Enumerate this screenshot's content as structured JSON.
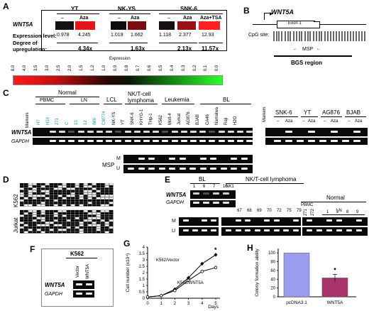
{
  "panels": {
    "A": "A",
    "B": "B",
    "C": "C",
    "D": "D",
    "E": "E",
    "F": "F",
    "G": "G",
    "H": "H"
  },
  "panelA": {
    "gene": "WNT5A",
    "groups": [
      "YT",
      "NK-YS",
      "SNK-6"
    ],
    "treat_minus": "–",
    "treat_aza": "Aza",
    "treat_azatsa": "Aza+TSA",
    "expr_label": "Expression level:",
    "expr_values": [
      "0.978",
      "4.245",
      "1.019",
      "1.662",
      "1.118",
      "2.377",
      "12.93"
    ],
    "degree_label_1": "Degree of",
    "degree_label_2": "upregulation:",
    "degrees": [
      "4.34x",
      "1.63x",
      "2.13x",
      "11.57x"
    ],
    "scale_title": "Expression",
    "scale_ticks": [
      "8.0",
      "4.0",
      "3.5",
      "3.0",
      "2.5",
      "2.0",
      "1.5",
      "1.2",
      "1.0",
      "0.9",
      "0.8",
      "0.7",
      "0.6",
      "0.5",
      "0.4",
      "0.3",
      "0.2",
      "0.1",
      "0.0"
    ],
    "colors": {
      "high": "#d41c1c",
      "low": "#2ad42a",
      "mid": "#111111"
    }
  },
  "panelB": {
    "gene": "WNT5A",
    "exon": "Exon 1",
    "cpg_label": "CpG site:",
    "msp": "MSP",
    "bgs": "BGS region"
  },
  "panelC": {
    "normal": "Normal",
    "pbmc": "PBMC",
    "ln": "LN",
    "lcl": "LCL",
    "nkt": "NK/T-cell",
    "lymphoma": "lymphoma",
    "leukemia": "Leukemia",
    "bl": "BL",
    "markers": "Markers",
    "lanes_normal": [
      "H7",
      "H10",
      "271",
      "C",
      "10",
      "12"
    ],
    "lanes_lcl": [
      "IM9",
      "CM774"
    ],
    "lanes_nkt": [
      "NK-YS",
      "YT",
      "SNK-6",
      "KHYG-1"
    ],
    "lanes_leuk": [
      "THp-1",
      "K562",
      "Molt-4",
      "Jurkat"
    ],
    "lanes_bl": [
      "AG876",
      "BJAB",
      "CA46",
      "Namalwa",
      "Raji",
      "H2O"
    ],
    "wnt5a": "WNT5A",
    "gapdh": "GAPDH",
    "msp": "MSP",
    "m": "M",
    "u": "U",
    "right_groups": [
      "SNK-6",
      "YT",
      "AG876",
      "BJAB"
    ],
    "minus": "–",
    "aza": "Aza"
  },
  "panelD": {
    "k562": "K562",
    "jurkat": "Jurkat"
  },
  "panelE": {
    "bl": "BL",
    "nkt": "NK/T-cell lymphoma",
    "normal": "Normal",
    "pbmc": "PBMC",
    "ln": "LN",
    "bl_lanes": [
      "1",
      "6",
      "7",
      "10"
    ],
    "nk1": "NK1",
    "nkt_lanes": [
      "67",
      "68",
      "69",
      "70",
      "72",
      "75",
      "79"
    ],
    "normal_lanes": [
      "271",
      "272",
      "1",
      "2",
      "8",
      "9"
    ],
    "wnt5a": "WNT5A",
    "gapdh": "GAPDH",
    "m": "M",
    "u": "U"
  },
  "panelF": {
    "cell": "K562",
    "vector": "Vector",
    "wnt5a_lane": "WNT5A",
    "wnt5a": "WNT5A",
    "gapdh": "GAPDH"
  },
  "chart_data": [
    {
      "type": "line",
      "panel": "G",
      "ylabel": "Cell number (x10⁴)",
      "xlabel": "Days",
      "x": [
        0,
        1,
        2,
        3,
        4,
        5
      ],
      "xticks": [
        "0",
        "1",
        "2",
        "3",
        "4",
        "5"
      ],
      "yticks": [
        "0",
        "0.5",
        "1",
        "1.5",
        "2",
        "2.5",
        "3",
        "3.5",
        "4"
      ],
      "ylim": [
        0,
        4
      ],
      "series": [
        {
          "name": "K562/Vector",
          "values": [
            0.1,
            0.2,
            0.7,
            1.6,
            2.7,
            3.4
          ]
        },
        {
          "name": "K562/WNT5A",
          "values": [
            0.1,
            0.2,
            0.6,
            1.4,
            2.1,
            2.4
          ]
        }
      ],
      "annotation": "*"
    },
    {
      "type": "bar",
      "panel": "H",
      "ylabel": "Colony formation ability",
      "categories": [
        "pcDNA3.1",
        "WNT5A"
      ],
      "values": [
        100,
        43
      ],
      "yticks": [
        "0",
        "20",
        "40",
        "60",
        "80",
        "100"
      ],
      "ylim": [
        0,
        110
      ],
      "colors": [
        "#9d9df0",
        "#a8336a"
      ],
      "annotation": "*"
    }
  ]
}
